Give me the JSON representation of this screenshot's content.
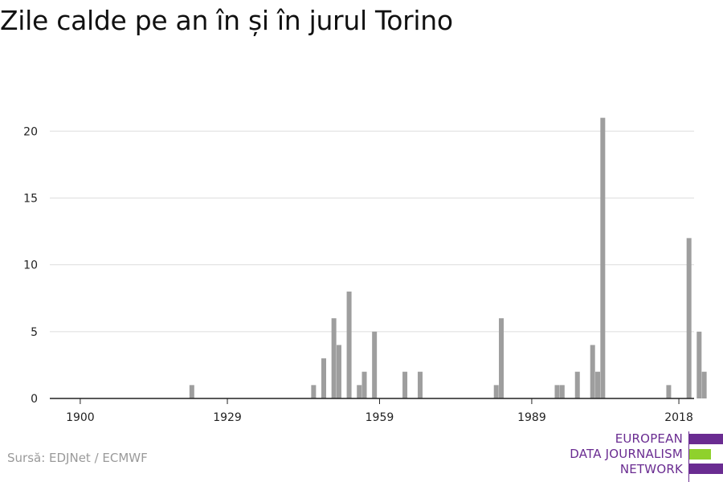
{
  "title": "Zile calde pe an în și în jurul Torino",
  "source": "Sursă: EDJNet / ECMWF",
  "logo": {
    "lines": [
      "EUROPEAN",
      "DATA JOURNALISM",
      "NETWORK"
    ],
    "colors": {
      "text": "#6a2c91",
      "bar_primary": "#6a2c91",
      "bar_accent": "#8fd12c"
    }
  },
  "chart_data": {
    "type": "bar",
    "title": "Zile calde pe an în și în jurul Torino",
    "xlabel": "",
    "ylabel": "",
    "xlim": [
      1894,
      2021
    ],
    "ylim": [
      0,
      22
    ],
    "x_ticks": [
      1900,
      1929,
      1959,
      1989,
      2018
    ],
    "y_ticks": [
      0,
      5,
      10,
      15,
      20
    ],
    "grid": true,
    "bar_color": "#9e9e9e",
    "x": [
      1922,
      1946,
      1948,
      1950,
      1951,
      1953,
      1955,
      1956,
      1958,
      1964,
      1967,
      1982,
      1983,
      1994,
      1995,
      1998,
      2001,
      2002,
      2003,
      2016,
      2020,
      2022,
      2023
    ],
    "values": [
      1,
      1,
      3,
      6,
      4,
      8,
      1,
      2,
      5,
      2,
      2,
      1,
      6,
      1,
      1,
      2,
      4,
      2,
      21,
      1,
      12,
      5,
      2
    ]
  }
}
